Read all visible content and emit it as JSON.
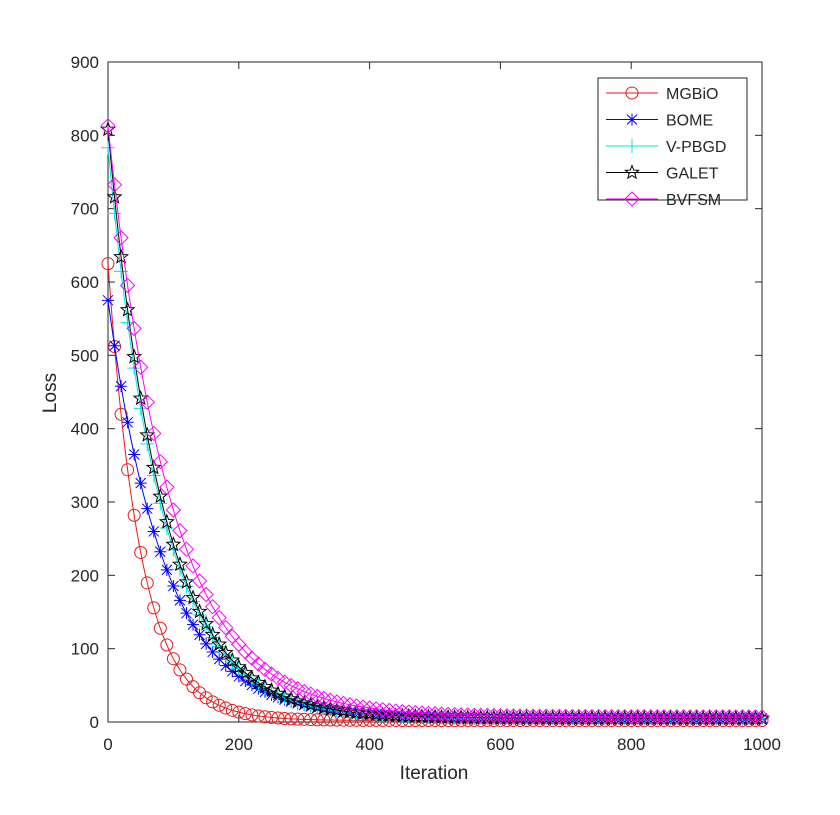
{
  "chart_data": {
    "type": "line",
    "xlabel": "Iteration",
    "ylabel": "Loss",
    "xlim": [
      0,
      1000
    ],
    "ylim": [
      0,
      900
    ],
    "xticks": [
      0,
      200,
      400,
      600,
      800,
      1000
    ],
    "yticks": [
      0,
      100,
      200,
      300,
      400,
      500,
      600,
      700,
      800,
      900
    ],
    "grid": false,
    "legend_position": "top-right",
    "series": [
      {
        "name": "MGBiO",
        "color": "#e41a1c",
        "marker": "circle",
        "y0": 625,
        "decay": 0.02,
        "floor": 2,
        "start": 0,
        "step": 10
      },
      {
        "name": "BOME",
        "color": "#0000ff",
        "marker": "asterisk",
        "y0": 575,
        "decay": 0.0115,
        "floor": 5,
        "start": 0,
        "step": 10
      },
      {
        "name": "V-PBGD",
        "color": "#00e5e5",
        "marker": "plus",
        "y0": 783,
        "decay": 0.0122,
        "floor": 5,
        "start": 0,
        "step": 10
      },
      {
        "name": "GALET",
        "color": "#000000",
        "marker": "pentagram",
        "y0": 808,
        "decay": 0.0122,
        "floor": 5,
        "start": 0,
        "step": 10
      },
      {
        "name": "BVFSM",
        "color": "#ff00ff",
        "marker": "diamond",
        "y0": 813,
        "decay": 0.0105,
        "floor": 7,
        "start": 0,
        "step": 10
      }
    ]
  }
}
